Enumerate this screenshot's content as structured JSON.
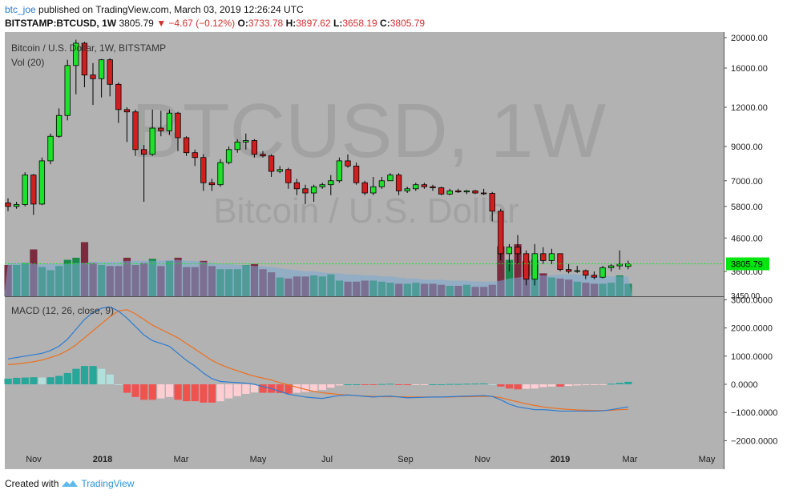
{
  "header": {
    "user": "btc_joe",
    "published_text": "published on TradingView.com, March 03, 2019 12:26:24 UTC",
    "symbol": "BITSTAMP:BTCUSD, 1W",
    "last": "3805.79",
    "change": "−4.67 (−0.12%)",
    "o_label": "O:",
    "o": "3733.78",
    "h_label": "H:",
    "h": "3897.62",
    "l_label": "L:",
    "l": "3658.19",
    "c_label": "C:",
    "c": "3805.79"
  },
  "footer": {
    "created_with": "Created with",
    "brand": "TradingView"
  },
  "colors": {
    "panel_bg": "#b2b2b2",
    "up": "#1ee12b",
    "down": "#d11f1f",
    "vol_up": "#1a8a4c",
    "vol_down": "#7c2a3e",
    "vol_ma": "#7aaad6",
    "macd": "#2a7bd2",
    "signal": "#ee6f1e",
    "hist_up_strong": "#27a69a",
    "hist_up_weak": "#b2dfdb",
    "hist_down_strong": "#ef5350",
    "hist_down_weak": "#ffcdd2",
    "price_tag": "#00e60e",
    "watermark": "#a2a2a2"
  },
  "chart_data": {
    "type": "candlestick",
    "title": "Bitcoin / U.S. Dollar, 1W, BITSTAMP",
    "volume_label": "Vol (20)",
    "watermark": "BTCUSD, 1W",
    "watermark_sub": "Bitcoin / U.S. Dollar",
    "price_axis": {
      "scale": "log",
      "ticks": [
        "20000.00",
        "16000.00",
        "12000.00",
        "9000.00",
        "7000.00",
        "5800.00",
        "4600.00",
        "3600.00"
      ],
      "last_price_tag": "3805.79"
    },
    "bottom_tick": "3450.00",
    "x_labels": [
      "Nov",
      "2018",
      "Mar",
      "May",
      "Jul",
      "Sep",
      "Nov",
      "2019",
      "Mar",
      "May"
    ],
    "ohlc": [
      {
        "o": 5950,
        "h": 6150,
        "l": 5600,
        "c": 5800
      },
      {
        "o": 5800,
        "h": 6000,
        "l": 5700,
        "c": 5880
      },
      {
        "o": 5880,
        "h": 7450,
        "l": 5800,
        "c": 7300
      },
      {
        "o": 7300,
        "h": 7350,
        "l": 5450,
        "c": 5900
      },
      {
        "o": 5900,
        "h": 8300,
        "l": 5850,
        "c": 8100
      },
      {
        "o": 8100,
        "h": 9900,
        "l": 7900,
        "c": 9700
      },
      {
        "o": 9700,
        "h": 11900,
        "l": 9600,
        "c": 11300
      },
      {
        "o": 11300,
        "h": 17000,
        "l": 10900,
        "c": 16300
      },
      {
        "o": 16300,
        "h": 19700,
        "l": 13200,
        "c": 19200
      },
      {
        "o": 19200,
        "h": 19400,
        "l": 13900,
        "c": 15200
      },
      {
        "o": 15200,
        "h": 16600,
        "l": 12200,
        "c": 14800
      },
      {
        "o": 14800,
        "h": 17100,
        "l": 12900,
        "c": 17000
      },
      {
        "o": 17000,
        "h": 17200,
        "l": 13000,
        "c": 14200
      },
      {
        "o": 14200,
        "h": 14400,
        "l": 10700,
        "c": 11800
      },
      {
        "o": 11800,
        "h": 12000,
        "l": 9300,
        "c": 11600
      },
      {
        "o": 11600,
        "h": 11800,
        "l": 8400,
        "c": 8800
      },
      {
        "o": 8800,
        "h": 9100,
        "l": 6000,
        "c": 8500
      },
      {
        "o": 8500,
        "h": 11800,
        "l": 8400,
        "c": 10300
      },
      {
        "o": 10300,
        "h": 11700,
        "l": 9700,
        "c": 10100
      },
      {
        "o": 10100,
        "h": 11800,
        "l": 9800,
        "c": 11500
      },
      {
        "o": 11500,
        "h": 11600,
        "l": 8700,
        "c": 9600
      },
      {
        "o": 9600,
        "h": 9700,
        "l": 8400,
        "c": 8600
      },
      {
        "o": 8600,
        "h": 8800,
        "l": 7800,
        "c": 8300
      },
      {
        "o": 8300,
        "h": 8500,
        "l": 6500,
        "c": 6900
      },
      {
        "o": 6900,
        "h": 7100,
        "l": 6500,
        "c": 6800
      },
      {
        "o": 6800,
        "h": 8200,
        "l": 6700,
        "c": 8000
      },
      {
        "o": 8000,
        "h": 9000,
        "l": 7900,
        "c": 8800
      },
      {
        "o": 8800,
        "h": 9500,
        "l": 8600,
        "c": 9300
      },
      {
        "o": 9300,
        "h": 9900,
        "l": 8800,
        "c": 9400
      },
      {
        "o": 9400,
        "h": 9500,
        "l": 8300,
        "c": 8500
      },
      {
        "o": 8500,
        "h": 8700,
        "l": 8300,
        "c": 8400
      },
      {
        "o": 8400,
        "h": 8500,
        "l": 7200,
        "c": 7500
      },
      {
        "o": 7500,
        "h": 7800,
        "l": 7400,
        "c": 7600
      },
      {
        "o": 7600,
        "h": 7700,
        "l": 6600,
        "c": 6900
      },
      {
        "o": 6900,
        "h": 7100,
        "l": 6300,
        "c": 6600
      },
      {
        "o": 6600,
        "h": 6800,
        "l": 5900,
        "c": 6400
      },
      {
        "o": 6400,
        "h": 6800,
        "l": 6000,
        "c": 6700
      },
      {
        "o": 6700,
        "h": 6900,
        "l": 6600,
        "c": 6800
      },
      {
        "o": 6800,
        "h": 7300,
        "l": 6300,
        "c": 7000
      },
      {
        "o": 7000,
        "h": 8300,
        "l": 6900,
        "c": 8100
      },
      {
        "o": 8100,
        "h": 8500,
        "l": 7700,
        "c": 7800
      },
      {
        "o": 7800,
        "h": 8000,
        "l": 6800,
        "c": 6900
      },
      {
        "o": 6900,
        "h": 7000,
        "l": 6300,
        "c": 6400
      },
      {
        "o": 6400,
        "h": 7200,
        "l": 6300,
        "c": 6700
      },
      {
        "o": 6700,
        "h": 7200,
        "l": 6600,
        "c": 7000
      },
      {
        "o": 7000,
        "h": 7400,
        "l": 7000,
        "c": 7300
      },
      {
        "o": 7300,
        "h": 7400,
        "l": 6300,
        "c": 6500
      },
      {
        "o": 6500,
        "h": 6700,
        "l": 6400,
        "c": 6600
      },
      {
        "o": 6600,
        "h": 6900,
        "l": 6500,
        "c": 6800
      },
      {
        "o": 6800,
        "h": 6900,
        "l": 6600,
        "c": 6700
      },
      {
        "o": 6700,
        "h": 6800,
        "l": 6500,
        "c": 6650
      },
      {
        "o": 6650,
        "h": 6700,
        "l": 6300,
        "c": 6350
      },
      {
        "o": 6350,
        "h": 6600,
        "l": 6300,
        "c": 6500
      },
      {
        "o": 6500,
        "h": 6600,
        "l": 6400,
        "c": 6450
      },
      {
        "o": 6450,
        "h": 6550,
        "l": 6350,
        "c": 6500
      },
      {
        "o": 6500,
        "h": 6550,
        "l": 6350,
        "c": 6400
      },
      {
        "o": 6400,
        "h": 6600,
        "l": 6300,
        "c": 6380
      },
      {
        "o": 6380,
        "h": 6450,
        "l": 5200,
        "c": 5600
      },
      {
        "o": 5600,
        "h": 5700,
        "l": 3900,
        "c": 4100
      },
      {
        "o": 4100,
        "h": 4400,
        "l": 3600,
        "c": 4300
      },
      {
        "o": 4300,
        "h": 4700,
        "l": 3800,
        "c": 4100
      },
      {
        "o": 4100,
        "h": 4200,
        "l": 3250,
        "c": 3400
      },
      {
        "o": 3400,
        "h": 4400,
        "l": 3250,
        "c": 4100
      },
      {
        "o": 4100,
        "h": 4300,
        "l": 3800,
        "c": 3900
      },
      {
        "o": 3900,
        "h": 4250,
        "l": 3800,
        "c": 4100
      },
      {
        "o": 4100,
        "h": 4100,
        "l": 3600,
        "c": 3650
      },
      {
        "o": 3650,
        "h": 3800,
        "l": 3550,
        "c": 3600
      },
      {
        "o": 3600,
        "h": 3750,
        "l": 3560,
        "c": 3620
      },
      {
        "o": 3620,
        "h": 3650,
        "l": 3400,
        "c": 3500
      },
      {
        "o": 3500,
        "h": 3600,
        "l": 3400,
        "c": 3450
      },
      {
        "o": 3450,
        "h": 3750,
        "l": 3420,
        "c": 3700
      },
      {
        "o": 3700,
        "h": 3800,
        "l": 3600,
        "c": 3750
      },
      {
        "o": 3750,
        "h": 4200,
        "l": 3650,
        "c": 3800
      },
      {
        "o": 3733.78,
        "h": 3897.62,
        "l": 3658.19,
        "c": 3805.79
      }
    ],
    "volume": [
      30,
      30,
      32,
      45,
      28,
      25,
      29,
      35,
      37,
      52,
      32,
      30,
      29,
      29,
      37,
      30,
      32,
      36,
      29,
      34,
      37,
      28,
      28,
      34,
      29,
      26,
      26,
      26,
      30,
      31,
      26,
      23,
      18,
      17,
      19,
      19,
      20,
      19,
      21,
      15,
      14,
      14,
      15,
      15,
      14,
      13,
      12,
      12,
      13,
      12,
      12,
      11,
      10,
      10,
      11,
      9,
      9,
      11,
      48,
      35,
      50,
      34,
      35,
      22,
      18,
      17,
      16,
      14,
      13,
      12,
      12,
      13,
      20,
      12
    ],
    "vol_ma": [
      32,
      32,
      32,
      31,
      31,
      31,
      31,
      31,
      32,
      32,
      33,
      33,
      33,
      33,
      34,
      34,
      34,
      34,
      34,
      35,
      35,
      34,
      34,
      33,
      32,
      31,
      31,
      30,
      30,
      29,
      29,
      28,
      27,
      26,
      25,
      24,
      24,
      23,
      22,
      22,
      21,
      21,
      20,
      20,
      19,
      19,
      18,
      17,
      17,
      16,
      16,
      16,
      15,
      15,
      15,
      14,
      14,
      14,
      15,
      17,
      18,
      19,
      20,
      20,
      20,
      21,
      21,
      21,
      20,
      20,
      20,
      19,
      19,
      19
    ],
    "macd": [
      900,
      950,
      1000,
      1050,
      1100,
      1200,
      1350,
      1600,
      1950,
      2300,
      2550,
      2700,
      2750,
      2600,
      2350,
      2050,
      1750,
      1550,
      1450,
      1350,
      1100,
      850,
      650,
      400,
      200,
      100,
      80,
      60,
      40,
      0,
      -80,
      -150,
      -250,
      -350,
      -400,
      -450,
      -480,
      -500,
      -450,
      -400,
      -380,
      -400,
      -430,
      -450,
      -430,
      -420,
      -450,
      -480,
      -470,
      -460,
      -450,
      -450,
      -440,
      -430,
      -420,
      -410,
      -400,
      -430,
      -550,
      -700,
      -800,
      -850,
      -900,
      -900,
      -920,
      -950,
      -950,
      -950,
      -950,
      -950,
      -940,
      -900,
      -850,
      -800
    ],
    "signal": [
      700,
      720,
      760,
      800,
      860,
      950,
      1050,
      1200,
      1400,
      1650,
      1900,
      2150,
      2400,
      2600,
      2650,
      2500,
      2300,
      2100,
      1950,
      1800,
      1650,
      1450,
      1250,
      1050,
      850,
      700,
      580,
      480,
      380,
      290,
      220,
      150,
      60,
      -20,
      -100,
      -180,
      -250,
      -300,
      -330,
      -360,
      -380,
      -400,
      -420,
      -430,
      -440,
      -440,
      -440,
      -450,
      -450,
      -450,
      -450,
      -450,
      -450,
      -440,
      -440,
      -435,
      -430,
      -430,
      -470,
      -550,
      -620,
      -690,
      -750,
      -800,
      -840,
      -870,
      -890,
      -910,
      -920,
      -930,
      -930,
      -920,
      -900,
      -890
    ],
    "macd_label": "MACD (12, 26, close, 9)",
    "macd_axis": [
      "3000.0000",
      "2000.0000",
      "1000.0000",
      "0.0000",
      "−1000.0000",
      "−2000.0000"
    ]
  }
}
